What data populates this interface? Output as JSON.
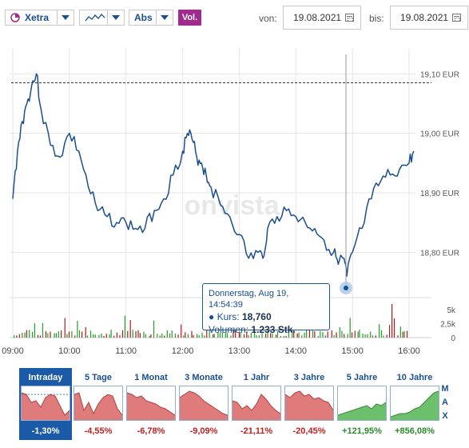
{
  "toolbar": {
    "exchange": "Xetra",
    "scale": "Abs",
    "volume_label": "Vol.",
    "from_label": "von:",
    "from_date": "19.08.2021",
    "to_label": "bis:",
    "to_date": "19.08.2021"
  },
  "watermark": "onvista",
  "tooltip": {
    "date": "Donnerstag, Aug 19, 14:54:39",
    "kurs_label": "Kurs:",
    "kurs_value": "18,760",
    "volumen_label": "Volumen:",
    "volumen_value": "1.233 Stk."
  },
  "chart_data": {
    "type": "line",
    "x": [
      "09:00",
      "09:05",
      "09:10",
      "09:15",
      "09:20",
      "09:25",
      "09:30",
      "09:40",
      "09:50",
      "10:00",
      "10:10",
      "10:20",
      "10:30",
      "10:40",
      "10:50",
      "11:00",
      "11:10",
      "11:20",
      "11:30",
      "11:40",
      "11:50",
      "12:00",
      "12:05",
      "12:10",
      "12:15",
      "12:20",
      "12:25",
      "12:30",
      "12:40",
      "12:50",
      "13:00",
      "13:10",
      "13:20",
      "13:25",
      "13:30",
      "13:40",
      "13:50",
      "14:00",
      "14:10",
      "14:20",
      "14:30",
      "14:40",
      "14:45",
      "14:50",
      "14:54",
      "15:00",
      "15:10",
      "15:20",
      "15:30",
      "15:40",
      "15:50",
      "16:00",
      "16:05"
    ],
    "y": [
      18.89,
      18.97,
      19.02,
      19.05,
      19.08,
      19.1,
      19.04,
      18.98,
      18.96,
      19.0,
      18.97,
      18.91,
      18.87,
      18.86,
      18.85,
      18.85,
      18.84,
      18.84,
      18.87,
      18.89,
      18.93,
      18.97,
      19.0,
      18.99,
      18.96,
      18.95,
      18.93,
      18.91,
      18.88,
      18.86,
      18.83,
      18.79,
      18.8,
      18.79,
      18.84,
      18.86,
      18.87,
      18.86,
      18.85,
      18.84,
      18.82,
      18.8,
      18.78,
      18.79,
      18.76,
      18.8,
      18.84,
      18.89,
      18.92,
      18.93,
      18.94,
      18.95,
      18.97
    ],
    "ylim": [
      18.74,
      19.13
    ],
    "y_ticks": [
      "19,10 EUR",
      "19,00 EUR",
      "18,90 EUR",
      "18,80 EUR"
    ],
    "x_ticks": [
      "09:00",
      "10:00",
      "11:00",
      "12:00",
      "13:00",
      "14:00",
      "15:00",
      "16:00"
    ],
    "reference_line": 19.085,
    "volume": {
      "y_ticks": [
        "5k",
        "2,5k",
        "0"
      ],
      "ylim": [
        0,
        6000
      ]
    }
  },
  "tabs": [
    {
      "label": "Intraday",
      "change": "-1,30%",
      "dir": "neg",
      "active": true
    },
    {
      "label": "5 Tage",
      "change": "-4,55%",
      "dir": "neg"
    },
    {
      "label": "1 Monat",
      "change": "-6,78%",
      "dir": "neg"
    },
    {
      "label": "3 Monate",
      "change": "-9,09%",
      "dir": "neg"
    },
    {
      "label": "1 Jahr",
      "change": "-21,11%",
      "dir": "neg"
    },
    {
      "label": "3 Jahre",
      "change": "-20,45%",
      "dir": "neg"
    },
    {
      "label": "5 Jahre",
      "change": "+121,95%",
      "dir": "pos"
    },
    {
      "label": "10 Jahre",
      "change": "+856,08%",
      "dir": "pos"
    }
  ],
  "max_label": [
    "M",
    "A",
    "X"
  ],
  "colors": {
    "line": "#1a4f8f",
    "accent": "#1a5aa6",
    "volume_button": "#a02a8e",
    "negative_fill": "#e07b7b",
    "positive_fill": "#6cc06c"
  }
}
